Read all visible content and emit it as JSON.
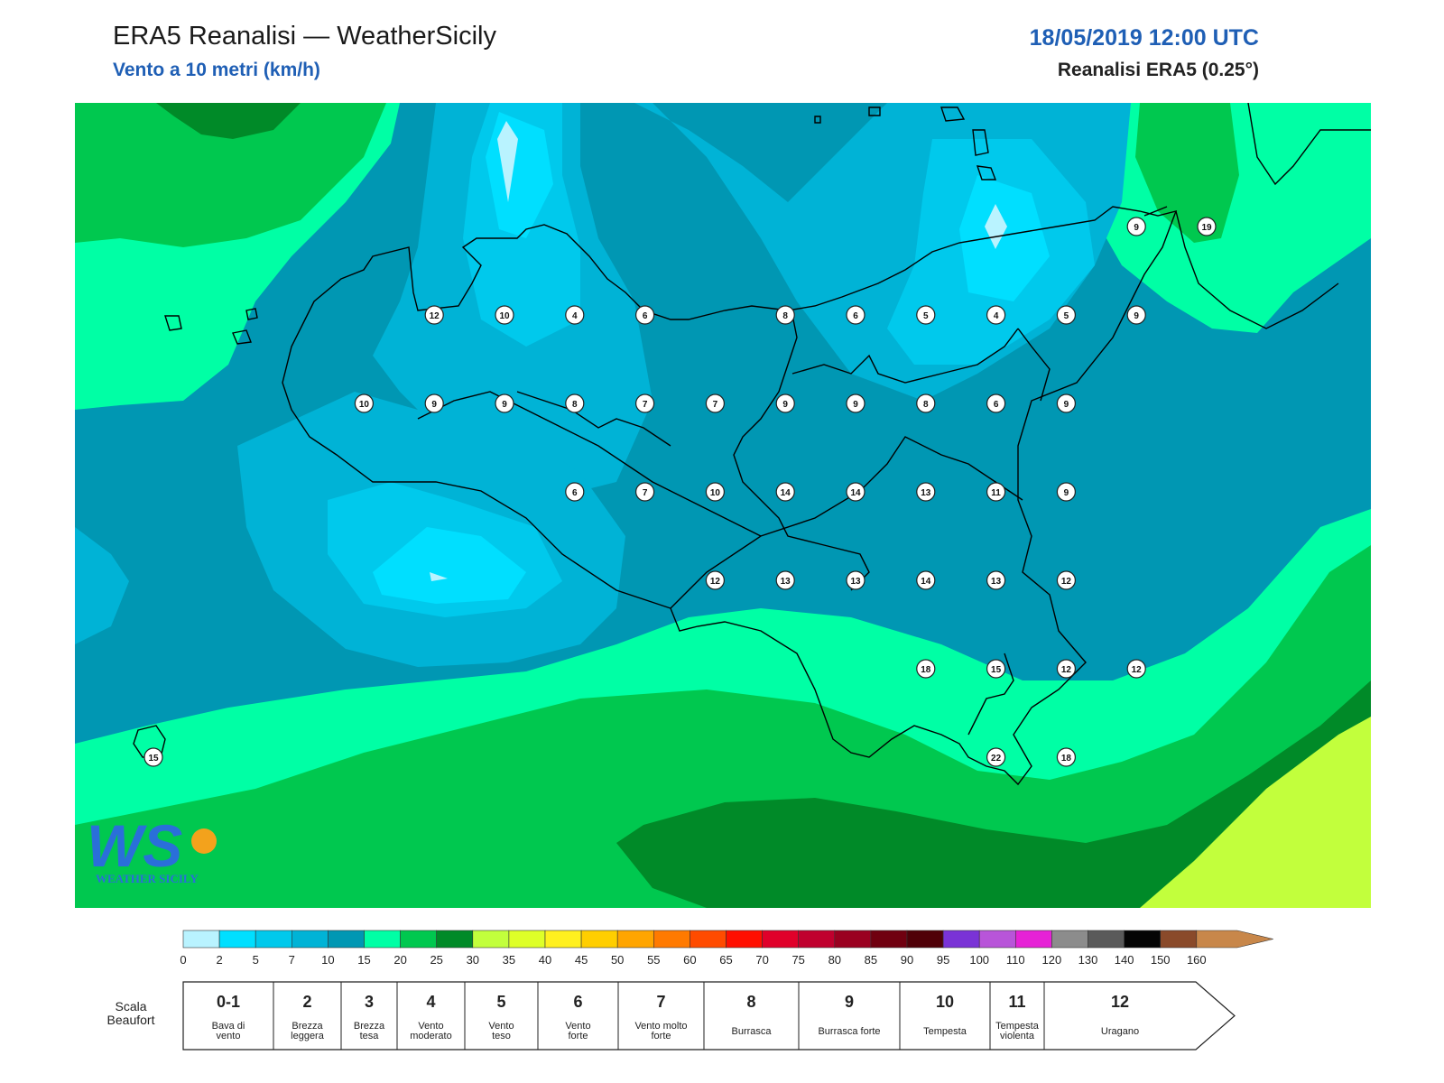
{
  "header": {
    "title": "ERA5 Reanalisi — WeatherSicily",
    "subtitle": "Vento a 10 metri (km/h)",
    "datetime": "18/05/2019 12:00 UTC",
    "source": "Reanalisi ERA5 (0.25°)"
  },
  "logo": {
    "text": "WEATHER SICILY",
    "letters": "WS"
  },
  "station_values": [
    {
      "lon": 13.0,
      "lat": 37.65,
      "v": 12
    },
    {
      "lon": 13.5,
      "lat": 37.65,
      "v": 10
    },
    {
      "lon": 14.0,
      "lat": 37.65,
      "v": 4
    },
    {
      "lon": 14.5,
      "lat": 37.65,
      "v": 6
    },
    {
      "lon": 15.5,
      "lat": 37.65,
      "v": 8
    },
    {
      "lon": 16.0,
      "lat": 37.65,
      "v": 6
    },
    {
      "lon": 16.5,
      "lat": 37.65,
      "v": 5
    },
    {
      "lon": 17.0,
      "lat": 37.65,
      "v": 4
    },
    {
      "lon": 17.5,
      "lat": 37.65,
      "v": 5
    },
    {
      "lon": 18.0,
      "lat": 37.65,
      "v": 9
    },
    {
      "lon": 18.0,
      "lat": 38.15,
      "v": 9
    },
    {
      "lon": 18.5,
      "lat": 38.15,
      "v": 19
    },
    {
      "lon": 12.5,
      "lat": 37.15,
      "v": 10
    },
    {
      "lon": 13.0,
      "lat": 37.15,
      "v": 9
    },
    {
      "lon": 13.5,
      "lat": 37.15,
      "v": 9
    },
    {
      "lon": 14.0,
      "lat": 37.15,
      "v": 8
    },
    {
      "lon": 14.5,
      "lat": 37.15,
      "v": 7
    },
    {
      "lon": 15.0,
      "lat": 37.15,
      "v": 7
    },
    {
      "lon": 15.5,
      "lat": 37.15,
      "v": 9
    },
    {
      "lon": 16.0,
      "lat": 37.15,
      "v": 9
    },
    {
      "lon": 16.5,
      "lat": 37.15,
      "v": 8
    },
    {
      "lon": 17.0,
      "lat": 37.15,
      "v": 6
    },
    {
      "lon": 17.5,
      "lat": 37.15,
      "v": 9
    },
    {
      "lon": 14.0,
      "lat": 36.65,
      "v": 6
    },
    {
      "lon": 14.5,
      "lat": 36.65,
      "v": 7
    },
    {
      "lon": 15.0,
      "lat": 36.65,
      "v": 10
    },
    {
      "lon": 15.5,
      "lat": 36.65,
      "v": 14
    },
    {
      "lon": 16.0,
      "lat": 36.65,
      "v": 14
    },
    {
      "lon": 16.5,
      "lat": 36.65,
      "v": 13
    },
    {
      "lon": 17.0,
      "lat": 36.65,
      "v": 11
    },
    {
      "lon": 17.5,
      "lat": 36.65,
      "v": 9
    },
    {
      "lon": 15.0,
      "lat": 36.15,
      "v": 12
    },
    {
      "lon": 15.5,
      "lat": 36.15,
      "v": 13
    },
    {
      "lon": 16.0,
      "lat": 36.15,
      "v": 13
    },
    {
      "lon": 16.5,
      "lat": 36.15,
      "v": 14
    },
    {
      "lon": 17.0,
      "lat": 36.15,
      "v": 13
    },
    {
      "lon": 17.5,
      "lat": 36.15,
      "v": 12
    },
    {
      "lon": 16.5,
      "lat": 35.65,
      "v": 18
    },
    {
      "lon": 17.0,
      "lat": 35.65,
      "v": 15
    },
    {
      "lon": 17.5,
      "lat": 35.65,
      "v": 12
    },
    {
      "lon": 18.0,
      "lat": 35.65,
      "v": 12
    },
    {
      "lon": 17.0,
      "lat": 35.15,
      "v": 22
    },
    {
      "lon": 17.5,
      "lat": 35.15,
      "v": 18
    },
    {
      "lon": 11.0,
      "lat": 35.15,
      "v": 15
    }
  ],
  "colorbar": {
    "unit": "km/h",
    "ticks": [
      "0",
      "2",
      "5",
      "7",
      "10",
      "15",
      "20",
      "25",
      "30",
      "35",
      "40",
      "45",
      "50",
      "55",
      "60",
      "65",
      "70",
      "75",
      "80",
      "85",
      "90",
      "95",
      "100",
      "110",
      "120",
      "130",
      "140",
      "150",
      "160"
    ],
    "colors": [
      "#b9f3ff",
      "#00dfff",
      "#00c9ec",
      "#00b3d6",
      "#0097b3",
      "#00ffa5",
      "#00c84f",
      "#008a28",
      "#c2ff3c",
      "#deff28",
      "#fff01f",
      "#ffce00",
      "#ffa500",
      "#ff7a00",
      "#ff4b00",
      "#ff0f00",
      "#e0002a",
      "#c0002e",
      "#9a0020",
      "#700010",
      "#500008",
      "#7a33d6",
      "#b855d9",
      "#e622d6",
      "#8c8c8c",
      "#5a5a5a",
      "#050505",
      "#8a4a2a",
      "#c8874a"
    ]
  },
  "beaufort": {
    "title": "Scala Beaufort",
    "levels": [
      {
        "num": "0-1",
        "desc": "Bava di vento"
      },
      {
        "num": "2",
        "desc": "Brezza leggera"
      },
      {
        "num": "3",
        "desc": "Brezza tesa"
      },
      {
        "num": "4",
        "desc": "Vento moderato"
      },
      {
        "num": "5",
        "desc": "Vento teso"
      },
      {
        "num": "6",
        "desc": "Vento forte"
      },
      {
        "num": "7",
        "desc": "Vento molto forte"
      },
      {
        "num": "8",
        "desc": "Burrasca"
      },
      {
        "num": "9",
        "desc": "Burrasca forte"
      },
      {
        "num": "10",
        "desc": "Tempesta"
      },
      {
        "num": "11",
        "desc": "Tempesta violenta"
      },
      {
        "num": "12",
        "desc": "Uragano"
      }
    ]
  }
}
